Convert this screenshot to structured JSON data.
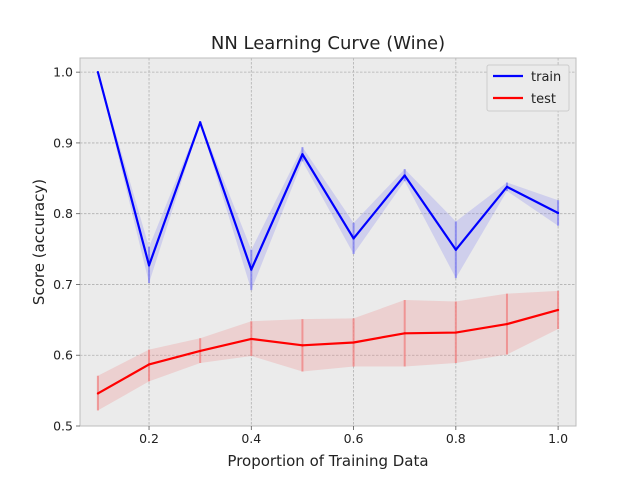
{
  "chart_data": {
    "type": "line",
    "title": "NN Learning Curve (Wine)",
    "xlabel": "Proportion of Training Data",
    "ylabel": "Score (accuracy)",
    "xlim": [
      0.065,
      1.035
    ],
    "ylim": [
      0.5,
      1.02
    ],
    "xticks": [
      0.2,
      0.4,
      0.6,
      0.8,
      1.0
    ],
    "xtick_labels": [
      "0.2",
      "0.4",
      "0.6",
      "0.8",
      "1.0"
    ],
    "yticks": [
      0.5,
      0.6,
      0.7,
      0.8,
      0.9,
      1.0
    ],
    "ytick_labels": [
      "0.5",
      "0.6",
      "0.7",
      "0.8",
      "0.9",
      "1.0"
    ],
    "grid": true,
    "legend_position": "top-right",
    "x": [
      0.1,
      0.2,
      0.3,
      0.4,
      0.5,
      0.6,
      0.7,
      0.8,
      0.9,
      1.0
    ],
    "series": [
      {
        "name": "train",
        "color": "#0000ff",
        "band_color": "#7b7bf0",
        "values": [
          1.0,
          0.727,
          0.929,
          0.721,
          0.884,
          0.765,
          0.854,
          0.749,
          0.838,
          0.801
        ],
        "lower": [
          1.0,
          0.702,
          0.928,
          0.692,
          0.874,
          0.743,
          0.846,
          0.709,
          0.832,
          0.783
        ],
        "upper": [
          1.0,
          0.753,
          0.931,
          0.749,
          0.894,
          0.787,
          0.863,
          0.789,
          0.844,
          0.819
        ]
      },
      {
        "name": "test",
        "color": "#ff0000",
        "band_color": "#f08080",
        "values": [
          0.546,
          0.587,
          0.606,
          0.623,
          0.614,
          0.618,
          0.631,
          0.632,
          0.644,
          0.664
        ],
        "lower": [
          0.522,
          0.563,
          0.589,
          0.599,
          0.577,
          0.584,
          0.584,
          0.589,
          0.601,
          0.637
        ],
        "upper": [
          0.571,
          0.608,
          0.624,
          0.648,
          0.651,
          0.652,
          0.678,
          0.676,
          0.687,
          0.691
        ]
      }
    ]
  }
}
